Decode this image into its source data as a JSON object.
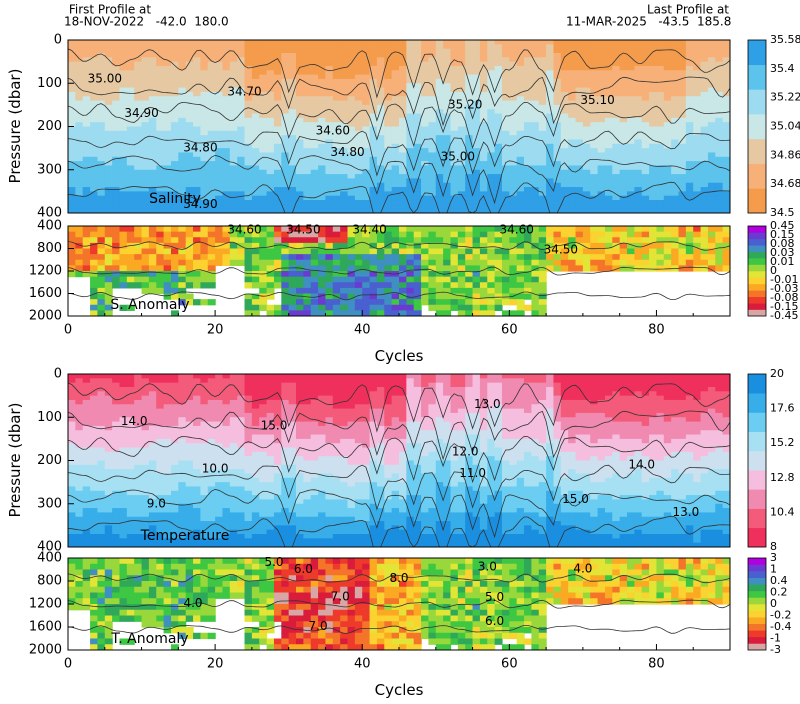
{
  "header": {
    "first_title": "First Profile at",
    "first_info": "18-NOV-2022   -42.0  180.0",
    "last_title": "Last Profile at",
    "last_info": "11-MAR-2025   -43.5  185.8"
  },
  "chart_data": [
    {
      "type": "heatmap",
      "name": "Salinity",
      "variable": "Salinity",
      "xlabel": "",
      "ylabel": "Pressure (dbar)",
      "xlim": [
        0,
        90
      ],
      "ylim": [
        400,
        0
      ],
      "y_ticks": [
        0,
        100,
        200,
        300,
        400
      ],
      "colorbar_ticks": [
        "35.58",
        "35.4",
        "35.22",
        "35.04",
        "34.86",
        "34.68",
        "34.5"
      ],
      "colorbar_colors": [
        "#f49c4c",
        "#f7b078",
        "#e6c9a2",
        "#c8e7e6",
        "#9ddcf0",
        "#5cc3ec",
        "#2f9fe6"
      ],
      "contour_labels": [
        "35.00",
        "34.90",
        "34.80",
        "34.70",
        "34.60",
        "35.20",
        "35.10"
      ],
      "contour_label_positions": [
        [
          5,
          90
        ],
        [
          10,
          170
        ],
        [
          18,
          250
        ],
        [
          24,
          120
        ],
        [
          36,
          210
        ],
        [
          54,
          150
        ],
        [
          72,
          140
        ],
        [
          53,
          270
        ],
        [
          18,
          380
        ],
        [
          38,
          260
        ]
      ]
    },
    {
      "type": "heatmap",
      "name": "S. Anomaly",
      "variable": "S. Anomaly",
      "xlabel": "Cycles",
      "ylabel": "",
      "xlim": [
        0,
        90
      ],
      "ylim": [
        2000,
        400
      ],
      "y_ticks": [
        400,
        800,
        1200,
        1600,
        2000
      ],
      "x_ticks": [
        0,
        20,
        40,
        60,
        80
      ],
      "colorbar_ticks": [
        "0.45",
        "0.15",
        "0.08",
        "0.03",
        "0.01",
        "0",
        "-0.01",
        "-0.03",
        "-0.08",
        "-0.15",
        "-0.45"
      ],
      "colorbar_colors": [
        "#d9a6a6",
        "#d91c3c",
        "#ee3a2a",
        "#f4752a",
        "#fba923",
        "#fbd230",
        "#e2e436",
        "#99d83a",
        "#3ec742",
        "#2fa85a",
        "#3f8fc2",
        "#4a5fd0",
        "#6a3bd1",
        "#b000e0"
      ],
      "contour_labels": [
        "34.60",
        "34.50",
        "34.40"
      ],
      "contour_label_positions": [
        [
          24,
          470
        ],
        [
          32,
          470
        ],
        [
          41,
          470
        ],
        [
          61,
          470
        ],
        [
          67,
          830
        ]
      ]
    },
    {
      "type": "heatmap",
      "name": "Temperature",
      "variable": "Temperature",
      "xlabel": "",
      "ylabel": "Pressure (dbar)",
      "xlim": [
        0,
        90
      ],
      "ylim": [
        400,
        0
      ],
      "y_ticks": [
        0,
        100,
        200,
        300,
        400
      ],
      "colorbar_ticks": [
        "20",
        "17.6",
        "15.2",
        "12.8",
        "10.4",
        "8"
      ],
      "colorbar_colors": [
        "#f0305c",
        "#f45a7a",
        "#f08ab0",
        "#f6bede",
        "#cde0ef",
        "#a7e0f3",
        "#6acdf1",
        "#37ade9",
        "#1a8fe0"
      ],
      "contour_labels": [
        "14.0",
        "15.0",
        "13.0",
        "12.0",
        "11.0",
        "10.0",
        "9.0"
      ],
      "contour_label_positions": [
        [
          9,
          110
        ],
        [
          28,
          120
        ],
        [
          57,
          70
        ],
        [
          54,
          180
        ],
        [
          55,
          230
        ],
        [
          20,
          220
        ],
        [
          12,
          300
        ],
        [
          78,
          210
        ],
        [
          69,
          290
        ],
        [
          84,
          320
        ]
      ]
    },
    {
      "type": "heatmap",
      "name": "T. Anomaly",
      "variable": "T. Anomaly",
      "xlabel": "Cycles",
      "ylabel": "",
      "xlim": [
        0,
        90
      ],
      "ylim": [
        2000,
        400
      ],
      "y_ticks": [
        400,
        800,
        1200,
        1600,
        2000
      ],
      "x_ticks": [
        0,
        20,
        40,
        60,
        80
      ],
      "colorbar_ticks": [
        "3",
        "1",
        "0.4",
        "0.2",
        "0",
        "-0.2",
        "-0.4",
        "-1",
        "-3"
      ],
      "colorbar_colors": [
        "#d9a6a6",
        "#d91c3c",
        "#ee3a2a",
        "#f4752a",
        "#fba923",
        "#fbd230",
        "#e2e436",
        "#99d83a",
        "#3ec742",
        "#2fa85a",
        "#3f8fc2",
        "#4a5fd0",
        "#6a3bd1",
        "#b000e0"
      ],
      "contour_labels": [
        "4.0",
        "5.0",
        "6.0",
        "7.0",
        "8.0",
        "3.0"
      ],
      "contour_label_positions": [
        [
          17,
          1190
        ],
        [
          28,
          480
        ],
        [
          32,
          600
        ],
        [
          37,
          1080
        ],
        [
          45,
          760
        ],
        [
          57,
          560
        ],
        [
          70,
          590
        ],
        [
          58,
          1090
        ],
        [
          58,
          1500
        ],
        [
          34,
          1590
        ]
      ]
    }
  ]
}
